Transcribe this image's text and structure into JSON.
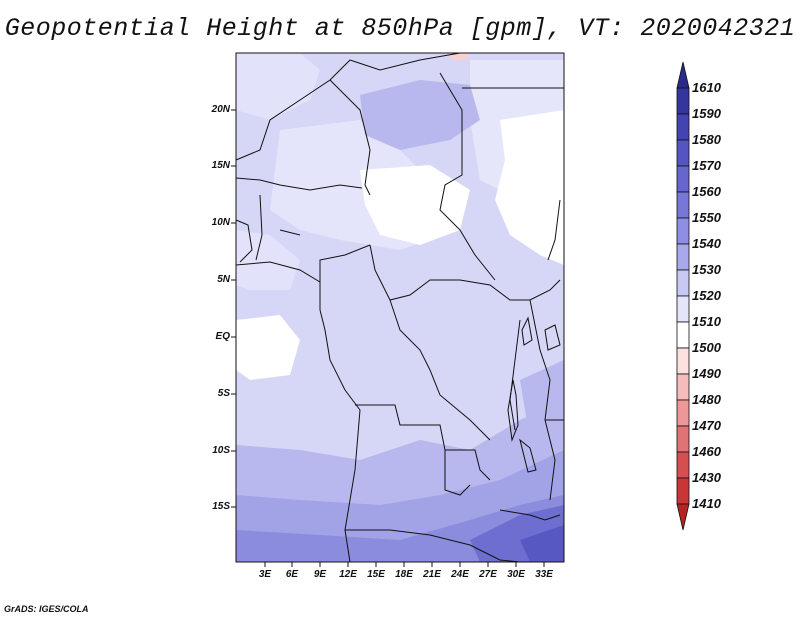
{
  "title": "Geopotential Height at 850hPa [gpm], VT: 2020042321",
  "credit": "GrADS: IGES/COLA",
  "y_ticks": [
    "20N",
    "15N",
    "10N",
    "5N",
    "EQ",
    "5S",
    "10S",
    "15S"
  ],
  "x_ticks": [
    "3E",
    "6E",
    "9E",
    "12E",
    "15E",
    "18E",
    "21E",
    "24E",
    "27E",
    "30E",
    "33E"
  ],
  "colorbar": {
    "labels": [
      "1610",
      "1590",
      "1580",
      "1570",
      "1560",
      "1550",
      "1540",
      "1530",
      "1520",
      "1510",
      "1500",
      "1490",
      "1480",
      "1470",
      "1460",
      "1430",
      "1410"
    ],
    "colors": [
      "#2a2a8c",
      "#35359e",
      "#4444b0",
      "#5555c2",
      "#6666cc",
      "#7777d6",
      "#8e8ee2",
      "#a8a8ec",
      "#c8c8f4",
      "#e4e4fa",
      "#ffffff",
      "#fde0e0",
      "#f6bcbc",
      "#ec9898",
      "#e07474",
      "#d45050",
      "#c83636",
      "#b42424"
    ]
  },
  "colors": {
    "land_outline": "#111111",
    "field_light": "#d8d8f8",
    "field_mid": "#b8b8ee",
    "field_dark": "#9090dc",
    "field_white": "#ffffff"
  }
}
